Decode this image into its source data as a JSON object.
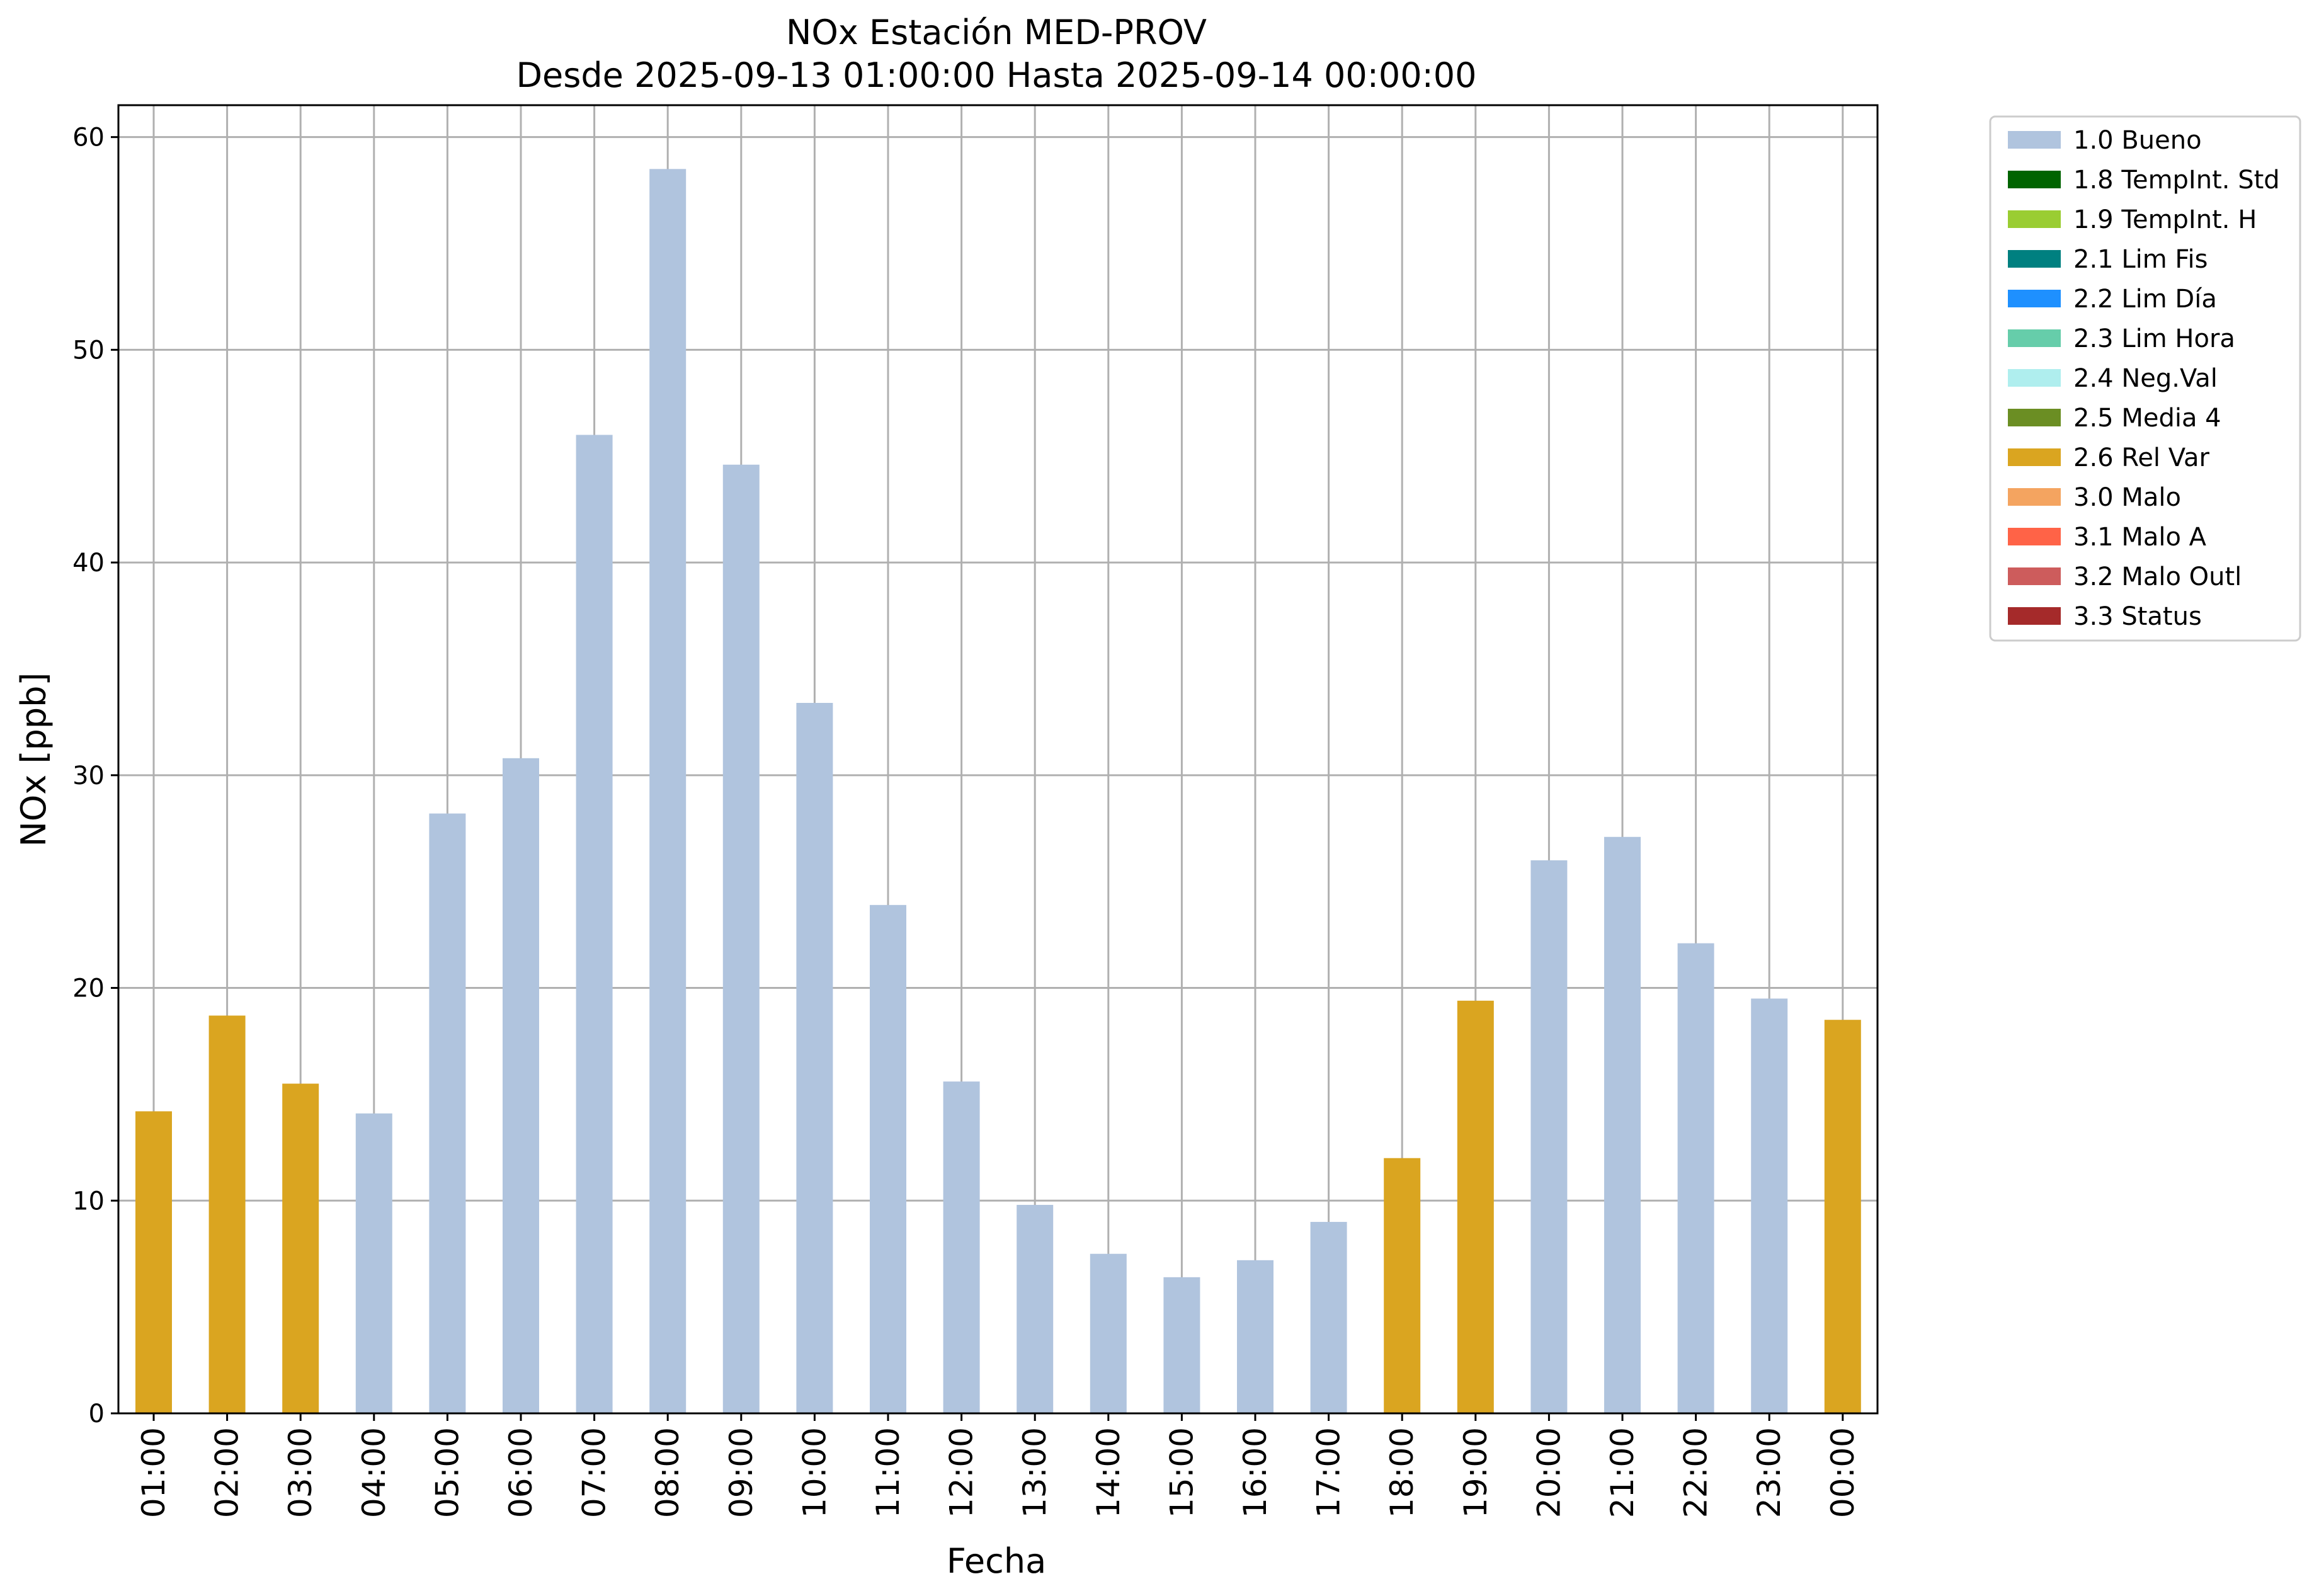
{
  "chart_data": {
    "type": "bar",
    "title": "NOx Estación MED-PROV",
    "subtitle": "Desde 2025-09-13 01:00:00 Hasta 2025-09-14 00:00:00",
    "xlabel": "Fecha",
    "ylabel": "NOx [ppb]",
    "ylim": [
      0,
      61.5
    ],
    "yticks": [
      "0",
      "10",
      "20",
      "30",
      "40",
      "50",
      "60"
    ],
    "grid": true,
    "legend_position": "outside top-right",
    "categories": [
      "01:00",
      "02:00",
      "03:00",
      "04:00",
      "05:00",
      "06:00",
      "07:00",
      "08:00",
      "09:00",
      "10:00",
      "11:00",
      "12:00",
      "13:00",
      "14:00",
      "15:00",
      "16:00",
      "17:00",
      "18:00",
      "19:00",
      "20:00",
      "21:00",
      "22:00",
      "23:00",
      "00:00"
    ],
    "values": [
      14.2,
      18.7,
      15.5,
      14.1,
      28.2,
      30.8,
      46.0,
      58.5,
      44.6,
      33.4,
      23.9,
      15.6,
      9.8,
      7.5,
      6.4,
      7.2,
      9.0,
      12.0,
      19.4,
      26.0,
      27.1,
      22.1,
      19.5,
      18.5
    ],
    "flags": [
      "2.6 Rel Var",
      "2.6 Rel Var",
      "2.6 Rel Var",
      "1.0 Bueno",
      "1.0 Bueno",
      "1.0 Bueno",
      "1.0 Bueno",
      "1.0 Bueno",
      "1.0 Bueno",
      "1.0 Bueno",
      "1.0 Bueno",
      "1.0 Bueno",
      "1.0 Bueno",
      "1.0 Bueno",
      "1.0 Bueno",
      "1.0 Bueno",
      "1.0 Bueno",
      "2.6 Rel Var",
      "2.6 Rel Var",
      "1.0 Bueno",
      "1.0 Bueno",
      "1.0 Bueno",
      "1.0 Bueno",
      "2.6 Rel Var"
    ],
    "legend": [
      {
        "label": "1.0 Bueno",
        "color": "#b0c4de"
      },
      {
        "label": "1.8 TempInt. Std",
        "color": "#006400"
      },
      {
        "label": "1.9 TempInt. H",
        "color": "#9acd32"
      },
      {
        "label": "2.1 Lim Fis",
        "color": "#008080"
      },
      {
        "label": "2.2 Lim Día",
        "color": "#1e90ff"
      },
      {
        "label": "2.3 Lim Hora",
        "color": "#66cdaa"
      },
      {
        "label": "2.4 Neg.Val",
        "color": "#afeeee"
      },
      {
        "label": "2.5 Media 4",
        "color": "#6b8e23"
      },
      {
        "label": "2.6 Rel Var",
        "color": "#daa520"
      },
      {
        "label": "3.0 Malo",
        "color": "#f4a460"
      },
      {
        "label": "3.1 Malo A",
        "color": "#ff6347"
      },
      {
        "label": "3.2 Malo Outl",
        "color": "#cd5c5c"
      },
      {
        "label": "3.3 Status",
        "color": "#a52a2a"
      }
    ]
  }
}
